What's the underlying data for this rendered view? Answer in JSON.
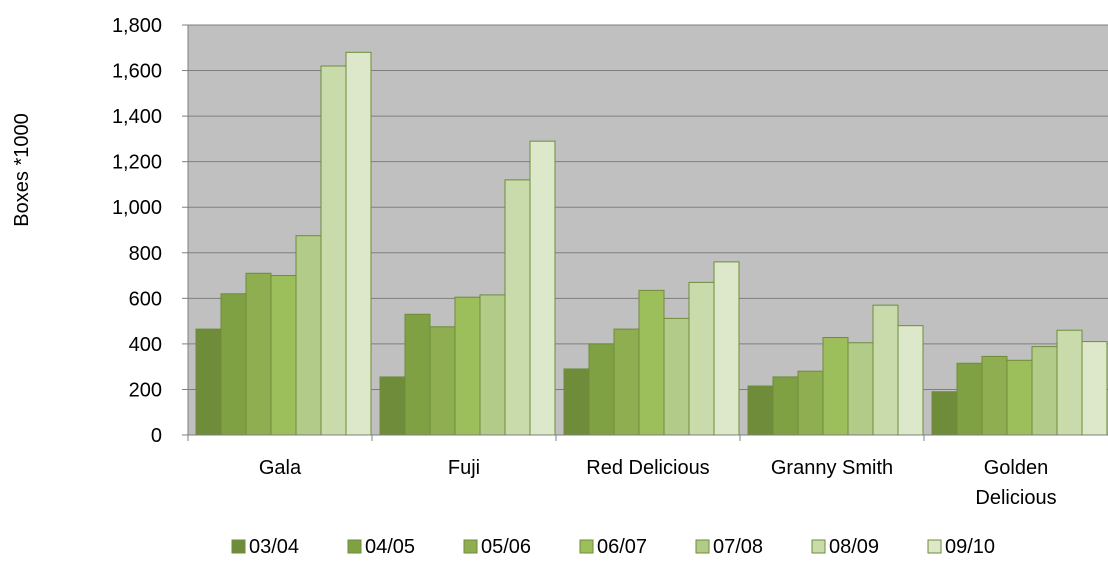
{
  "chart_data": {
    "type": "bar",
    "title": "",
    "xlabel": "",
    "ylabel": "Boxes *1000",
    "ylim": [
      0,
      1800
    ],
    "yticks": [
      0,
      200,
      400,
      600,
      800,
      1000,
      1200,
      1400,
      1600,
      1800
    ],
    "ytick_labels": [
      "0",
      "200",
      "400",
      "600",
      "800",
      "1,000",
      "1,200",
      "1,400",
      "1,600",
      "1,800"
    ],
    "categories": [
      "Gala",
      "Fuji",
      "Red Delicious",
      "Granny Smith",
      "Golden Delicious"
    ],
    "category_labels": [
      [
        "Gala"
      ],
      [
        "Fuji"
      ],
      [
        "Red Delicious"
      ],
      [
        "Granny Smith"
      ],
      [
        "Golden",
        "Delicious"
      ]
    ],
    "grid": true,
    "legend_position": "bottom",
    "plot_background": "#c0c0c0",
    "series": [
      {
        "name": "03/04",
        "color": "#6e8c3a",
        "values": [
          465,
          255,
          290,
          215,
          190
        ]
      },
      {
        "name": "04/05",
        "color": "#7fa144",
        "values": [
          620,
          530,
          400,
          255,
          315
        ]
      },
      {
        "name": "05/06",
        "color": "#8fae52",
        "values": [
          710,
          475,
          465,
          280,
          345
        ]
      },
      {
        "name": "06/07",
        "color": "#9cbf5b",
        "values": [
          700,
          605,
          635,
          428,
          328
        ]
      },
      {
        "name": "07/08",
        "color": "#b2cb88",
        "values": [
          875,
          615,
          512,
          405,
          388
        ]
      },
      {
        "name": "08/09",
        "color": "#c9dbab",
        "values": [
          1620,
          1120,
          670,
          570,
          460
        ]
      },
      {
        "name": "09/10",
        "color": "#dce8c9",
        "values": [
          1680,
          1290,
          760,
          480,
          410
        ]
      }
    ]
  }
}
